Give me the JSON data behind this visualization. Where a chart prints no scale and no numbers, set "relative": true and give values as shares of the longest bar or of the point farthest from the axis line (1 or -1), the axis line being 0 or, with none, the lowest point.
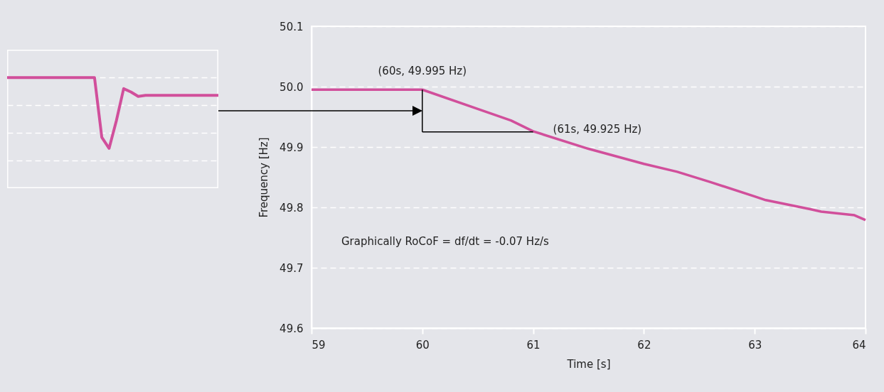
{
  "chart_data": [
    {
      "type": "line",
      "relative": true,
      "grid": true,
      "color": "#d14f9b",
      "categories": [
        null,
        null,
        null,
        null,
        null,
        null,
        null,
        null,
        null,
        null,
        null,
        null,
        null,
        null,
        null,
        null,
        null,
        null,
        null,
        null,
        null,
        null,
        null,
        null,
        null,
        null,
        null,
        null,
        null,
        null
      ],
      "values": [
        1,
        1,
        1,
        1,
        1,
        1,
        1,
        1,
        1,
        1,
        1,
        1,
        1,
        0.46,
        0.36,
        0.61,
        0.9,
        0.87,
        0.83,
        0.84,
        0.84,
        0.84,
        0.84,
        0.84,
        0.84,
        0.84,
        0.84,
        0.84,
        0.84,
        0.84
      ]
    },
    {
      "type": "line",
      "xlabel": "Time [s]",
      "ylabel": "Frequency [Hz]",
      "color": "#d14f9b",
      "grid": "y",
      "x": [
        59,
        60,
        60.5,
        60.8,
        61,
        61.5,
        62,
        62.3,
        62.6,
        63,
        63.1,
        63.5,
        63.6,
        63.9,
        64
      ],
      "values": [
        49.995,
        49.995,
        49.963,
        49.944,
        49.926,
        49.897,
        49.872,
        49.859,
        49.842,
        49.818,
        49.812,
        49.797,
        49.793,
        49.787,
        49.779
      ],
      "xlim": [
        59,
        64
      ],
      "ylim": [
        49.6,
        50.1
      ],
      "xticks": [
        59,
        60,
        61,
        62,
        63,
        64
      ],
      "yticks": [
        49.6,
        49.7,
        49.8,
        49.9,
        {
          "value": 50,
          "label": "50.0"
        },
        50.1
      ],
      "annotations": [
        {
          "text": "(60s, 49.995 Hz)",
          "x": 60,
          "y": 49.995
        },
        {
          "text": "(61s, 49.925 Hz)",
          "x": 61,
          "y": 49.925
        },
        "Graphically RoCoF = df/dt = -0.07 Hz/s"
      ]
    }
  ]
}
